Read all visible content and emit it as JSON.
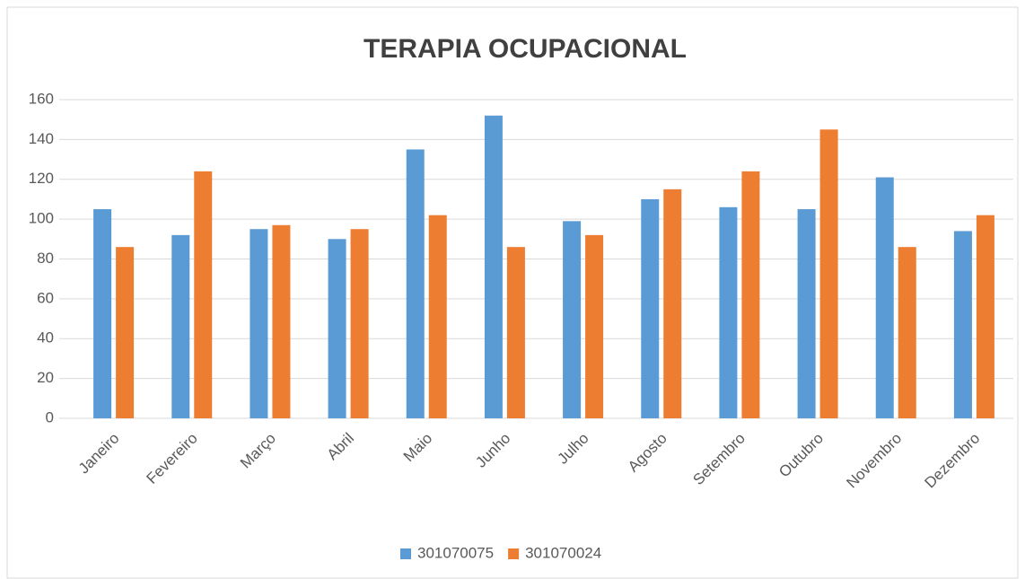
{
  "chart_data": {
    "type": "bar",
    "title": "TERAPIA OCUPACIONAL",
    "categories": [
      "Janeiro",
      "Fevereiro",
      "Março",
      "Abril",
      "Maio",
      "Junho",
      "Julho",
      "Agosto",
      "Setembro",
      "Outubro",
      "Novembro",
      "Dezembro"
    ],
    "series": [
      {
        "name": "301070075",
        "color": "#5b9bd5",
        "values": [
          105,
          92,
          95,
          90,
          135,
          152,
          99,
          110,
          106,
          105,
          121,
          94
        ]
      },
      {
        "name": "301070024",
        "color": "#ed7d31",
        "values": [
          86,
          124,
          97,
          95,
          102,
          86,
          92,
          115,
          124,
          145,
          86,
          102
        ]
      }
    ],
    "ylim": [
      0,
      160
    ],
    "yticks": [
      0,
      20,
      40,
      60,
      80,
      100,
      120,
      140,
      160
    ],
    "grid": true,
    "legend": "bottom"
  }
}
